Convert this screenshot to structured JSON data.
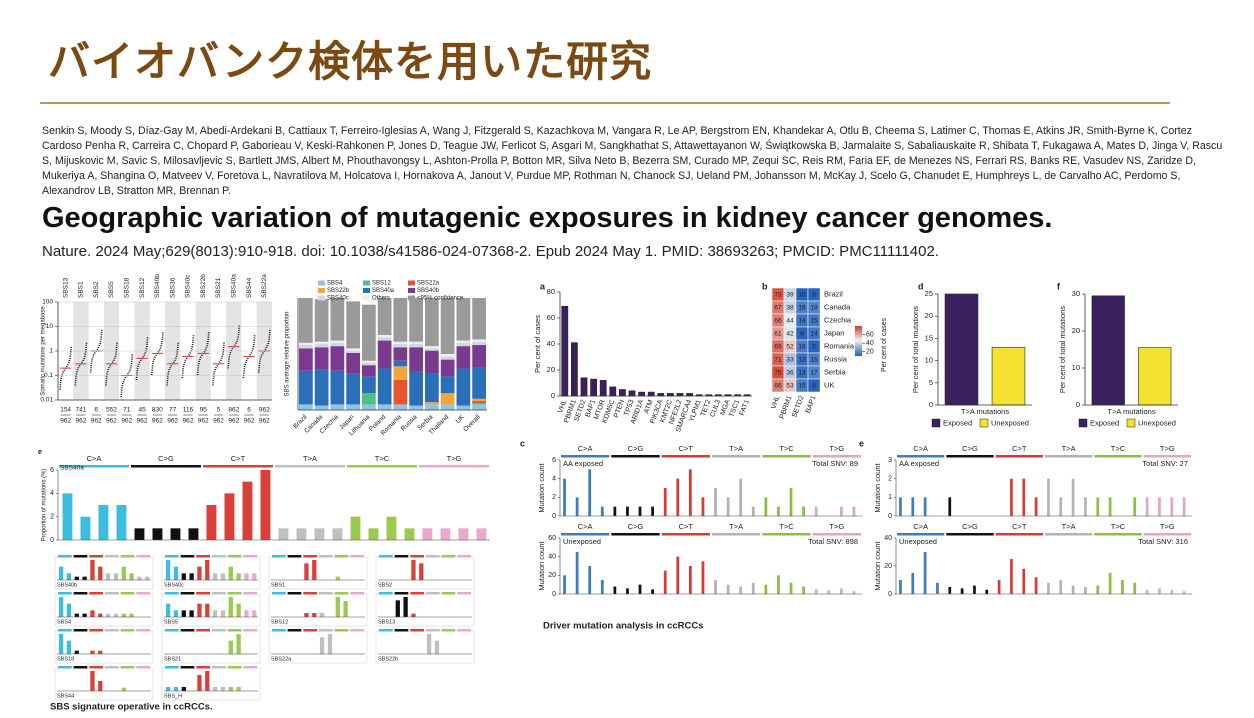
{
  "slide": {
    "title": "バイオバンク検体を用いた研究",
    "authors": "Senkin S, Moody S, Díaz-Gay M, Abedi-Ardekani B, Cattiaux T, Ferreiro-Iglesias A, Wang J, Fitzgerald S, Kazachkova M, Vangara R, Le AP, Bergstrom EN, Khandekar A, Otlu B, Cheema S, Latimer C, Thomas E, Atkins JR, Smith-Byrne K, Cortez Cardoso Penha R, Carreira C, Chopard P, Gaborieau V, Keski-Rahkonen P, Jones D, Teague JW, Ferlicot S, Asgari M, Sangkhathat S, Attawettayanon W, Świątkowska B, Jarmalaite S, Sabaliauskaite R, Shibata T, Fukagawa A, Mates D, Jinga V, Rascu S, Mijuskovic M, Savic S, Milosavljevic S, Bartlett JMS, Albert M, Phouthavongsy L, Ashton-Prolla P, Botton MR, Silva Neto B, Bezerra SM, Curado MP, Zequi SC, Reis RM, Faria EF, de Menezes NS, Ferrari RS, Banks RE, Vasudev NS, Zaridze D, Mukeriya A, Shangina O, Matveev V, Foretova L, Navratilova M, Holcatova I, Hornakova A, Janout V, Purdue MP, Rothman N, Chanock SJ, Ueland PM, Johansson M, McKay J, Scelo G, Chanudet E, Humphreys L, de Carvalho AC, Perdomo S, Alexandrov LB, Stratton MR, Brennan P.",
    "paper_title": "Geographic variation of mutagenic exposures in kidney cancer genomes.",
    "citation": "Nature. 2024 May;629(8013):910-918. doi: 10.1038/s41586-024-07368-2. Epub 2024 May 1. PMID: 38693263; PMCID: PMC11111402."
  },
  "left_figure": {
    "dots": {
      "type": "dot",
      "ylabel": "Somatic mutations per megabase",
      "yticks": [
        0.01,
        0.1,
        1,
        10,
        100
      ],
      "signatures": [
        "SBS13",
        "SBS1",
        "SBS2",
        "SBS5",
        "SBS18",
        "SBS12",
        "SBS40b",
        "SBS36",
        "SBS40c",
        "SBS22b",
        "SBS21",
        "SBS40a",
        "SBS44",
        "SBS22a"
      ],
      "counts": [
        154,
        741,
        6,
        552,
        71,
        45,
        830,
        77,
        116,
        95,
        5,
        862,
        6,
        962
      ],
      "totals": [
        962,
        962,
        962,
        962,
        962,
        962,
        962,
        962,
        962,
        962,
        962,
        962,
        962,
        962
      ],
      "medians": [
        0.2,
        0.3,
        1,
        0.3,
        0.1,
        0.5,
        0.8,
        0.3,
        0.6,
        0.8,
        0.3,
        1.5,
        0.6,
        1
      ]
    },
    "stacked": {
      "type": "stacked-bar",
      "ylabel": "SBS average relative proportion",
      "ylim": [
        0,
        1
      ],
      "categories": [
        "Brazil",
        "Canada",
        "Czechia",
        "Japan",
        "Lithuania",
        "Poland",
        "Romania",
        "Russia",
        "Serbia",
        "Thailand",
        "UK",
        "Overall"
      ],
      "series": [
        {
          "name": "SBS4",
          "color": "#8fc4ea",
          "values": [
            0.05,
            0.04,
            0.05,
            0.05,
            0.05,
            0.05,
            0.05,
            0.04,
            0.05,
            0.05,
            0.04,
            0.05
          ]
        },
        {
          "name": "SBS12",
          "color": "#4fbf8a",
          "values": [
            0,
            0,
            0,
            0,
            0.1,
            0,
            0,
            0,
            0,
            0,
            0,
            0.01
          ]
        },
        {
          "name": "SBS22a",
          "color": "#e8542e",
          "values": [
            0,
            0,
            0,
            0,
            0,
            0,
            0.22,
            0,
            0,
            0,
            0,
            0.02
          ]
        },
        {
          "name": "SBS22b",
          "color": "#f4a53a",
          "values": [
            0,
            0,
            0,
            0,
            0,
            0,
            0.12,
            0,
            0.02,
            0.1,
            0,
            0.02
          ]
        },
        {
          "name": "SBS40a",
          "color": "#2a6fb8",
          "values": [
            0.3,
            0.32,
            0.3,
            0.28,
            0.15,
            0.32,
            0.05,
            0.3,
            0.26,
            0.15,
            0.33,
            0.28
          ]
        },
        {
          "name": "SBS40b",
          "color": "#7b3a8f",
          "values": [
            0.2,
            0.2,
            0.22,
            0.18,
            0.1,
            0.25,
            0.12,
            0.22,
            0.2,
            0.15,
            0.2,
            0.2
          ]
        },
        {
          "name": "SBS40c",
          "color": "#cfd6e4",
          "values": [
            0.03,
            0.03,
            0.03,
            0.02,
            0.02,
            0.03,
            0.03,
            0.03,
            0.02,
            0.03,
            0.03,
            0.03
          ]
        },
        {
          "name": "Others",
          "color": "#eeeeee",
          "values": [
            0.02,
            0.02,
            0.02,
            0.02,
            0.02,
            0.02,
            0.02,
            0.02,
            0.02,
            0.02,
            0.02,
            0.02
          ]
        },
        {
          "name": "<95% confidence",
          "color": "#9a9a9a",
          "values": [
            0.4,
            0.38,
            0.38,
            0.42,
            0.5,
            0.33,
            0.39,
            0.39,
            0.43,
            0.5,
            0.38,
            0.37
          ]
        }
      ]
    },
    "spectra": {
      "panel": "e",
      "classes": [
        "C>A",
        "C>G",
        "C>T",
        "T>A",
        "T>C",
        "T>G"
      ],
      "main": {
        "type": "spectrum",
        "name": "SBS40a",
        "ylabel": "Proportion of mutations (%)",
        "ylim": [
          0,
          6
        ],
        "yticks": [
          0,
          2,
          4,
          6
        ],
        "values": [
          4,
          2,
          3,
          3,
          1,
          1,
          1,
          1,
          3,
          4,
          5,
          6,
          1,
          1,
          1,
          1,
          2,
          1,
          2,
          1,
          1,
          1,
          1,
          1
        ]
      },
      "small": [
        {
          "name": "SBS40b",
          "values": [
            2,
            1,
            0.5,
            0.5,
            3,
            2,
            1,
            1,
            2,
            1,
            0.5,
            0.5
          ]
        },
        {
          "name": "SBS40c",
          "values": [
            3,
            2,
            1,
            1,
            2,
            3,
            1,
            1,
            2,
            1,
            1,
            1
          ]
        },
        {
          "name": "SBS1",
          "values": [
            0,
            0,
            0,
            0,
            5,
            6,
            0,
            0,
            1,
            0,
            0,
            0
          ]
        },
        {
          "name": "SBS2",
          "values": [
            0,
            0,
            0,
            0,
            6,
            5,
            0,
            0,
            0,
            0,
            0,
            0
          ]
        },
        {
          "name": "SBS4",
          "values": [
            6,
            4,
            1,
            1,
            2,
            1,
            1,
            1,
            1,
            1,
            0,
            0
          ]
        },
        {
          "name": "SBS5",
          "values": [
            2,
            1,
            1,
            1,
            2,
            2,
            1,
            1,
            3,
            2,
            1,
            1
          ]
        },
        {
          "name": "SBS12",
          "values": [
            0,
            0,
            0,
            0,
            1,
            1,
            1,
            0,
            5,
            4,
            0,
            0
          ]
        },
        {
          "name": "SBS13",
          "values": [
            0,
            0,
            5,
            6,
            1,
            0,
            0,
            0,
            0,
            0,
            0,
            0
          ]
        },
        {
          "name": "SBS18",
          "values": [
            6,
            4,
            1,
            0,
            1,
            1,
            0,
            0,
            0,
            0,
            0,
            0
          ]
        },
        {
          "name": "SBS21",
          "values": [
            0,
            0,
            0,
            0,
            0,
            0,
            0,
            0,
            4,
            6,
            0,
            0
          ]
        },
        {
          "name": "SBS22a",
          "values": [
            0,
            0,
            0,
            0,
            0,
            0,
            5,
            6,
            0,
            0,
            0,
            0
          ]
        },
        {
          "name": "SBS22b",
          "values": [
            0,
            0,
            0,
            0,
            0,
            0,
            6,
            4,
            0,
            0,
            0,
            0
          ]
        },
        {
          "name": "SBS44",
          "values": [
            0,
            0,
            0,
            0,
            6,
            3,
            0,
            0,
            1,
            0,
            0,
            0
          ]
        },
        {
          "name": "SBS_H",
          "values": [
            1,
            1,
            1,
            0,
            4,
            5,
            1,
            1,
            1,
            1,
            0,
            0
          ]
        }
      ]
    },
    "caption": "SBS signature operative in ccRCCs."
  },
  "right_figure": {
    "a": {
      "type": "bar",
      "panel": "a",
      "ylabel": "Per cent of cases",
      "ylim": [
        0,
        80
      ],
      "yticks": [
        0,
        20,
        40,
        60,
        80
      ],
      "color": "#3b1f5e",
      "categories": [
        "VHL",
        "PBRM1",
        "SETD2",
        "BAP1",
        "MTOR",
        "KDM5C",
        "PTEN",
        "TP53",
        "ARID1A",
        "ATM",
        "PIK3CA",
        "KMT2C",
        "NFE2L2",
        "SMARCA4",
        "YLPM1",
        "TET2",
        "CUL3",
        "MGA",
        "TSC1",
        "FAT1"
      ],
      "values": [
        69,
        41,
        14,
        13,
        12,
        7,
        5,
        4,
        3,
        3,
        2,
        2,
        2,
        2,
        1,
        1,
        1,
        1,
        1,
        1
      ]
    },
    "b": {
      "type": "heatmap",
      "panel": "b",
      "label": "Per cent of cases",
      "colorbar_ticks": [
        20,
        40,
        60
      ],
      "columns": [
        "VHL",
        "PBRM1",
        "SETD2",
        "BAP1"
      ],
      "rows": [
        "Brazil",
        "Canada",
        "Czechia",
        "Japan",
        "Romania",
        "Russia",
        "Serbia",
        "UK"
      ],
      "values": [
        [
          73,
          39,
          10,
          8
        ],
        [
          67,
          38,
          16,
          18
        ],
        [
          66,
          44,
          14,
          15
        ],
        [
          61,
          42,
          6,
          14
        ],
        [
          69,
          52,
          16,
          5
        ],
        [
          71,
          33,
          13,
          16
        ],
        [
          75,
          36,
          13,
          17
        ],
        [
          66,
          53,
          15,
          8
        ]
      ]
    },
    "d": {
      "type": "bar",
      "panel": "d",
      "ylabel": "Per cent of total mutations",
      "xlabel": "T>A mutations",
      "ylim": [
        0,
        25
      ],
      "yticks": [
        0,
        5,
        10,
        15,
        20,
        25
      ],
      "categories": [
        "Exposed",
        "Unexposed"
      ],
      "colors": [
        "#3b1f5e",
        "#f5e132"
      ],
      "values": [
        25,
        13
      ]
    },
    "f": {
      "type": "bar",
      "panel": "f",
      "ylabel": "Per cent of total mutations",
      "xlabel": "T>A mutations",
      "ylim": [
        0,
        30
      ],
      "yticks": [
        0,
        10,
        20,
        30
      ],
      "categories": [
        "Exposed",
        "Unexposed"
      ],
      "colors": [
        "#3b1f5e",
        "#f5e132"
      ],
      "values": [
        29.5,
        15.5
      ]
    },
    "c": {
      "panel": "c",
      "classes": [
        "C>A",
        "C>G",
        "C>T",
        "T>A",
        "T>C",
        "T>G"
      ],
      "ylabel": "Mutation count",
      "spectra": [
        {
          "type": "spectrum",
          "name": "AA exposed",
          "total": "Total SNV: 89",
          "ylim": [
            0,
            6
          ],
          "yticks": [
            0,
            2,
            4,
            6
          ],
          "values": [
            4,
            2,
            5,
            1,
            1,
            1,
            1,
            1,
            3,
            4,
            5,
            2,
            3,
            2,
            4,
            1,
            2,
            1,
            3,
            1,
            1,
            0,
            1,
            1
          ]
        },
        {
          "type": "spectrum",
          "name": "Unexposed",
          "total": "Total SNV: 898",
          "ylim": [
            0,
            60
          ],
          "yticks": [
            0,
            20,
            40,
            60
          ],
          "values": [
            20,
            45,
            30,
            15,
            8,
            6,
            10,
            5,
            25,
            40,
            30,
            35,
            15,
            10,
            8,
            12,
            10,
            20,
            12,
            8,
            5,
            4,
            6,
            3
          ]
        }
      ]
    },
    "e": {
      "panel": "e",
      "classes": [
        "C>A",
        "C>G",
        "C>T",
        "T>A",
        "T>C",
        "T>G"
      ],
      "ylabel": "Mutation count",
      "spectra": [
        {
          "type": "spectrum",
          "name": "AA exposed",
          "total": "Total SNV: 27",
          "ylim": [
            0,
            3
          ],
          "yticks": [
            0,
            1,
            2,
            3
          ],
          "values": [
            1,
            1,
            1,
            0,
            1,
            0,
            0,
            0,
            0,
            2,
            2,
            1,
            2,
            1,
            2,
            1,
            1,
            1,
            0,
            1,
            1,
            1,
            1,
            1
          ]
        },
        {
          "type": "spectrum",
          "name": "Unexposed",
          "total": "Total SNV: 316",
          "ylim": [
            0,
            40
          ],
          "yticks": [
            0,
            20,
            40
          ],
          "values": [
            10,
            15,
            30,
            8,
            5,
            4,
            6,
            3,
            10,
            25,
            18,
            12,
            8,
            10,
            6,
            5,
            6,
            15,
            10,
            8,
            3,
            4,
            3,
            2
          ]
        }
      ]
    },
    "caption": "Driver mutation analysis in ccRCCs"
  }
}
